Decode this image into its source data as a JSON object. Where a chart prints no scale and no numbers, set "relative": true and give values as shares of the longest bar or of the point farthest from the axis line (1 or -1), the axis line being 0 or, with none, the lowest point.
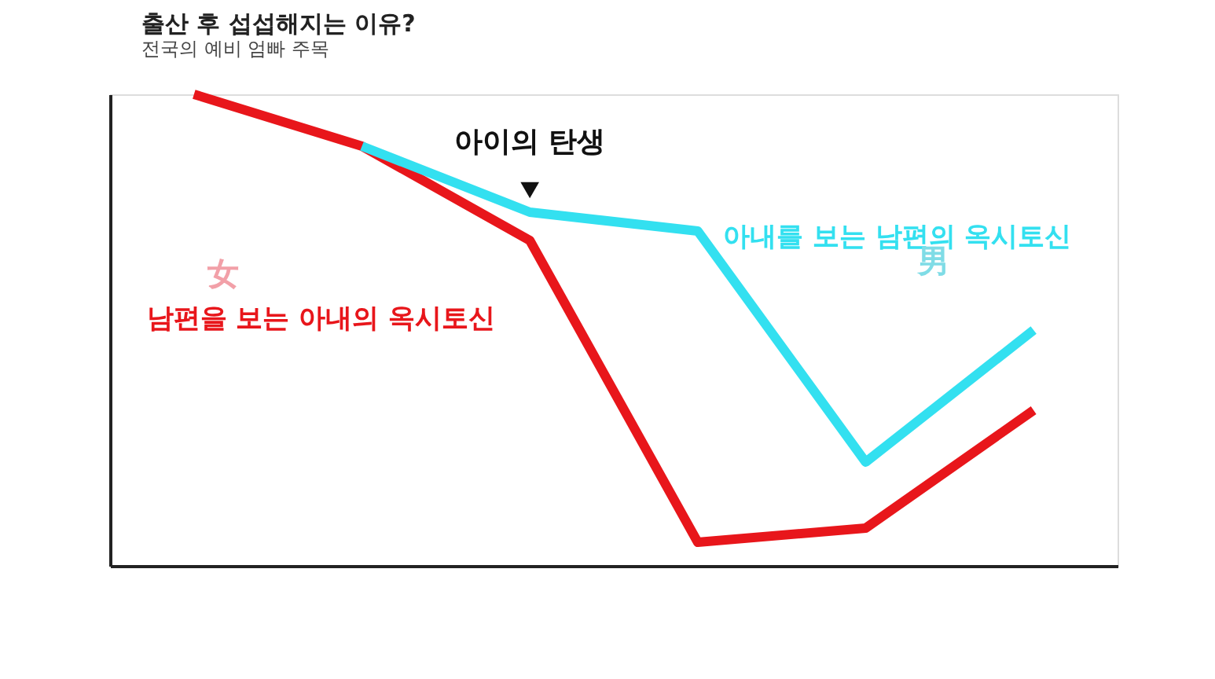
{
  "chart_data": {
    "type": "line",
    "title": "출산 후 섭섭해지는 이유?",
    "subtitle": "전국의 예비 엄빠 주목",
    "relative": true,
    "legend": false,
    "grid": false,
    "marker": "none",
    "line_style": "solid",
    "categories": [
      null,
      null,
      null,
      null,
      null,
      null
    ],
    "annotations": [
      "아이의 탄생",
      "女",
      "男"
    ],
    "series": [
      {
        "name": "남편을 보는 아내의 옥시토신",
        "color": "#e8161b",
        "values": [
          1,
          0.89,
          0.69,
          0.05,
          0.08,
          0.33
        ]
      },
      {
        "name": "아내를 보는 남편의 옥시토신",
        "color": "#33e0f0",
        "values": [
          null,
          0.89,
          0.75,
          0.71,
          0.22,
          0.5
        ]
      }
    ]
  }
}
